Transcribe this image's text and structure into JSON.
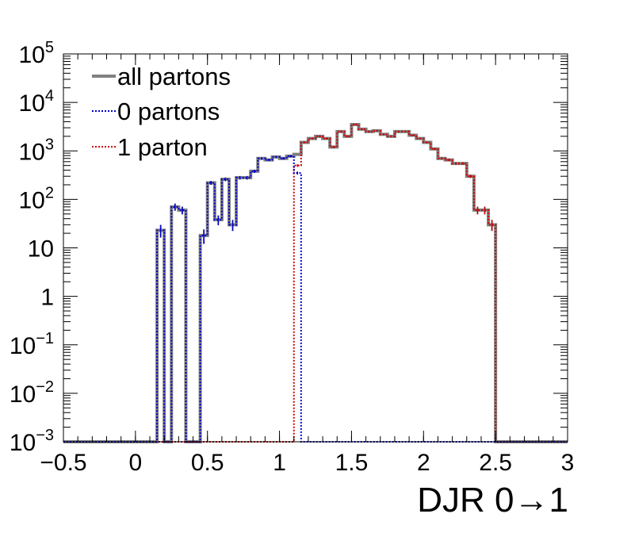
{
  "chart_data": {
    "type": "line",
    "xlabel": "DJR 0→1",
    "ylabel": "",
    "xlim": [
      -0.5,
      3
    ],
    "ylim": [
      0.001,
      100000
    ],
    "yscale": "log",
    "grid": false,
    "legend_position": "top-left",
    "x_tick_labels": [
      "−0.5",
      "0",
      "0.5",
      "1",
      "1.5",
      "2",
      "2.5",
      "3"
    ],
    "x_tick_values": [
      -0.5,
      0,
      0.5,
      1,
      1.5,
      2,
      2.5,
      3
    ],
    "y_ticks": [
      {
        "value": 0.001,
        "base": "10",
        "exp": "−3"
      },
      {
        "value": 0.01,
        "base": "10",
        "exp": "−2"
      },
      {
        "value": 0.1,
        "base": "10",
        "exp": "−1"
      },
      {
        "value": 1,
        "base": "1",
        "exp": ""
      },
      {
        "value": 10,
        "base": "10",
        "exp": ""
      },
      {
        "value": 100,
        "base": "10",
        "exp": "2"
      },
      {
        "value": 1000,
        "base": "10",
        "exp": "3"
      },
      {
        "value": 10000,
        "base": "10",
        "exp": "4"
      },
      {
        "value": 100000,
        "base": "10",
        "exp": "5"
      }
    ],
    "bin_edges": [
      -0.5,
      -0.45,
      -0.4,
      -0.35,
      -0.3,
      -0.25,
      -0.2,
      -0.15,
      -0.1,
      -0.05,
      0,
      0.05,
      0.1,
      0.15,
      0.2,
      0.25,
      0.3,
      0.35,
      0.4,
      0.45,
      0.5,
      0.55,
      0.6,
      0.65,
      0.7,
      0.75,
      0.8,
      0.85,
      0.9,
      0.95,
      1,
      1.05,
      1.1,
      1.15,
      1.2,
      1.25,
      1.3,
      1.35,
      1.4,
      1.45,
      1.5,
      1.55,
      1.6,
      1.65,
      1.7,
      1.75,
      1.8,
      1.85,
      1.9,
      1.95,
      2,
      2.05,
      2.1,
      2.15,
      2.2,
      2.25,
      2.3,
      2.35,
      2.4,
      2.45,
      2.5,
      2.55,
      2.6,
      2.65,
      2.7,
      2.75,
      2.8,
      2.85,
      2.9,
      2.95,
      3
    ],
    "series": [
      {
        "name": "all partons",
        "color": "#808080",
        "style": "solid",
        "values": [
          0.001,
          0.001,
          0.001,
          0.001,
          0.001,
          0.001,
          0.001,
          0.001,
          0.001,
          0.001,
          0.001,
          0.001,
          0.001,
          23,
          0.001,
          70,
          60,
          0.001,
          0.001,
          18,
          220,
          38,
          260,
          30,
          280,
          280,
          380,
          700,
          650,
          750,
          700,
          780,
          850,
          1500,
          1800,
          2000,
          1800,
          1200,
          2500,
          2000,
          3500,
          2800,
          2500,
          2600,
          2200,
          2000,
          2500,
          2500,
          2100,
          1800,
          1500,
          1100,
          700,
          650,
          550,
          550,
          300,
          60,
          60,
          30
        ],
        "bin_start_index": 0
      },
      {
        "name": "0 partons",
        "color": "#0000cc",
        "style": "dotted",
        "values": [
          0.001,
          0.001,
          0.001,
          0.001,
          0.001,
          0.001,
          0.001,
          0.001,
          0.001,
          0.001,
          0.001,
          0.001,
          0.001,
          23,
          0.001,
          70,
          60,
          0.001,
          0.001,
          18,
          220,
          38,
          260,
          30,
          280,
          280,
          380,
          700,
          650,
          750,
          700,
          780,
          350,
          0.001
        ],
        "bin_start_index": 0
      },
      {
        "name": "1 parton",
        "color": "#cc0000",
        "style": "dotted",
        "values": [
          0.001,
          0.001,
          0.001,
          0.001,
          0.001,
          0.001,
          0.001,
          0.001,
          0.001,
          0.001,
          0.001,
          0.001,
          0.001,
          0.001,
          0.001,
          0.001,
          0.001,
          0.001,
          0.001,
          0.001,
          0.001,
          0.001,
          0.001,
          0.001,
          0.001,
          0.001,
          0.001,
          0.001,
          0.001,
          0.001,
          0.001,
          0.001,
          500,
          1500,
          1800,
          2000,
          1800,
          1200,
          2500,
          2000,
          3500,
          2800,
          2500,
          2600,
          2200,
          2000,
          2500,
          2500,
          2100,
          1800,
          1500,
          1100,
          700,
          650,
          550,
          550,
          300,
          60,
          60,
          30
        ],
        "bin_start_index": 0
      }
    ]
  }
}
